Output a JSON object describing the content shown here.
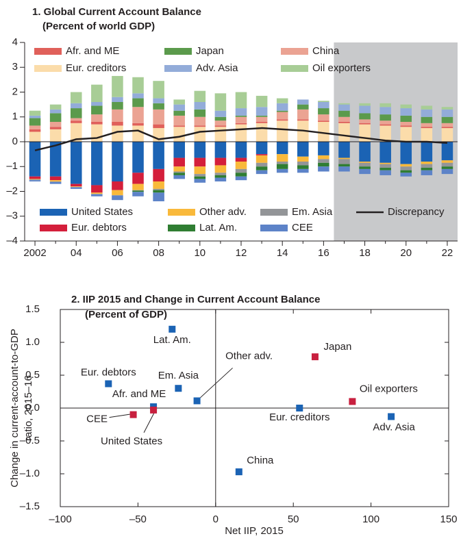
{
  "chart_data": [
    {
      "type": "stacked_bar",
      "title": "1. Global Current Account Balance",
      "subtitle": "(Percent of world GDP)",
      "categories": [
        "2002",
        null,
        "04",
        null,
        "06",
        null,
        "08",
        null,
        "10",
        null,
        "12",
        null,
        "14",
        null,
        "16",
        null,
        "18",
        null,
        "20",
        null,
        "22"
      ],
      "ylim": [
        -4,
        4
      ],
      "yticks": [
        {
          "value": -4,
          "label": "–4"
        },
        {
          "value": -3,
          "label": "–3"
        },
        {
          "value": -2,
          "label": "–2"
        },
        {
          "value": -1,
          "label": "–1"
        },
        0,
        1,
        2,
        3,
        4
      ],
      "series": [
        {
          "name": "Afr. and ME",
          "color": "#e0605a",
          "values": [
            0.1,
            0.1,
            0.1,
            0.1,
            0.15,
            0.1,
            0.15,
            0.05,
            0.05,
            0.05,
            0.05,
            0.05,
            0.05,
            0.05,
            0.05,
            0.05,
            0.05,
            0.05,
            0.05,
            0.05,
            0.05
          ]
        },
        {
          "name": "Japan",
          "color": "#5b9a4c",
          "values": [
            0.3,
            0.35,
            0.4,
            0.35,
            0.3,
            0.35,
            0.25,
            0.2,
            0.3,
            0.15,
            0.05,
            0.05,
            0.05,
            0.2,
            0.25,
            0.25,
            0.25,
            0.25,
            0.25,
            0.25,
            0.25
          ]
        },
        {
          "name": "China",
          "color": "#eba393",
          "values": [
            0.15,
            0.2,
            0.1,
            0.3,
            0.5,
            0.65,
            0.6,
            0.4,
            0.35,
            0.2,
            0.25,
            0.2,
            0.3,
            0.4,
            0.25,
            0.2,
            0.15,
            0.15,
            0.15,
            0.15,
            0.15
          ]
        },
        {
          "name": "Eur. creditors",
          "color": "#fbdcaa",
          "values": [
            0.4,
            0.5,
            0.75,
            0.7,
            0.65,
            0.65,
            0.55,
            0.6,
            0.6,
            0.6,
            0.7,
            0.75,
            0.85,
            0.85,
            0.8,
            0.75,
            0.7,
            0.65,
            0.6,
            0.55,
            0.55
          ]
        },
        {
          "name": "Adv. Asia",
          "color": "#93acd9",
          "values": [
            0.1,
            0.15,
            0.2,
            0.15,
            0.2,
            0.2,
            0.2,
            0.25,
            0.3,
            0.25,
            0.3,
            0.35,
            0.3,
            0.2,
            0.25,
            0.25,
            0.3,
            0.3,
            0.3,
            0.3,
            0.3
          ]
        },
        {
          "name": "Oil exporters",
          "color": "#a8cd96",
          "values": [
            0.2,
            0.2,
            0.45,
            0.7,
            0.85,
            0.65,
            0.7,
            0.2,
            0.45,
            0.7,
            0.65,
            0.45,
            0.2,
            0,
            0.05,
            0.05,
            0.1,
            0.15,
            0.15,
            0.15,
            0.1
          ]
        },
        {
          "name": "United States",
          "color": "#1b63b4",
          "values": [
            -1.4,
            -1.4,
            -1.7,
            -1.75,
            -1.6,
            -1.25,
            -1.1,
            -0.65,
            -0.65,
            -0.65,
            -0.65,
            -0.5,
            -0.5,
            -0.6,
            -0.55,
            -0.65,
            -0.8,
            -0.85,
            -0.9,
            -0.8,
            -0.75
          ]
        },
        {
          "name": "Other adv.",
          "color": "#f9b93b",
          "values": [
            -0.02,
            -0.05,
            -0.02,
            -0.05,
            -0.2,
            -0.25,
            -0.3,
            -0.2,
            -0.3,
            -0.3,
            -0.3,
            -0.3,
            -0.3,
            -0.2,
            -0.15,
            -0.05,
            -0.05,
            -0.05,
            -0.1,
            -0.1,
            -0.1
          ]
        },
        {
          "name": "Em. Asia",
          "color": "#939598",
          "values": [
            -0.03,
            -0.02,
            -0.02,
            -0.02,
            -0.02,
            -0.02,
            -0.05,
            -0.05,
            -0.1,
            -0.1,
            -0.15,
            -0.15,
            -0.1,
            -0.15,
            -0.15,
            -0.2,
            -0.15,
            -0.15,
            -0.15,
            -0.15,
            -0.15
          ]
        },
        {
          "name": "Eur. debtors",
          "color": "#d41f3b",
          "values": [
            -0.1,
            -0.15,
            -0.1,
            -0.3,
            -0.35,
            -0.45,
            -0.5,
            -0.35,
            -0.35,
            -0.3,
            -0.15,
            -0.05,
            0,
            0,
            0,
            0,
            0,
            0,
            0,
            0,
            0
          ]
        },
        {
          "name": "Lat. Am.",
          "color": "#2f7d32",
          "values": [
            0,
            0,
            0,
            0,
            0,
            -0.05,
            -0.1,
            -0.1,
            -0.1,
            -0.1,
            -0.15,
            -0.15,
            -0.2,
            -0.15,
            -0.15,
            -0.1,
            -0.1,
            -0.1,
            -0.1,
            -0.1,
            -0.1
          ]
        },
        {
          "name": "CEE",
          "color": "#5d83c8",
          "values": [
            -0.05,
            -0.08,
            -0.06,
            -0.08,
            -0.18,
            -0.18,
            -0.35,
            -0.15,
            -0.15,
            -0.15,
            -0.15,
            -0.15,
            -0.15,
            -0.15,
            -0.2,
            -0.2,
            -0.2,
            -0.2,
            -0.15,
            -0.2,
            -0.2
          ]
        },
        {
          "name": "Discrepancy",
          "color": "#231f20",
          "type": "line",
          "values": [
            -0.35,
            -0.15,
            0.1,
            0.15,
            0.4,
            0.45,
            0.1,
            0.2,
            0.4,
            0.45,
            0.5,
            0.55,
            0.5,
            0.45,
            0.35,
            0.25,
            0.15,
            0.05,
            0.0,
            0.0,
            -0.05
          ]
        }
      ]
    },
    {
      "type": "scatter",
      "title": "2. IIP 2015 and Change in Current Account Balance",
      "subtitle": "(Percent of GDP)",
      "xlabel": "Net IIP, 2015",
      "ylabel": [
        "Change in current-account-to-GDP",
        "ratio, 2015–16"
      ],
      "xlim": [
        -100,
        150
      ],
      "xticks": [
        {
          "value": -100,
          "label": "–100"
        },
        {
          "value": -50,
          "label": "–50"
        },
        0,
        50,
        100,
        150
      ],
      "ylim": [
        -1.5,
        1.5
      ],
      "yticks": [
        {
          "value": -1.5,
          "label": "–1.5"
        },
        {
          "value": -1.0,
          "label": "–1.0"
        },
        {
          "value": -0.5,
          "label": "–0.5"
        },
        {
          "value": 0,
          "label": "0.0"
        },
        0.5,
        {
          "value": 1.0,
          "label": "1.0"
        },
        1.5
      ],
      "labels": [
        "Lat. Am.",
        "Japan",
        "Eur. debtors",
        "Em. Asia",
        "Other adv.",
        "Oil exporters",
        "Afr. and ME",
        "Eur. creditors",
        "CEE",
        "United States",
        "Adv. Asia",
        "China"
      ],
      "x": [
        -28,
        64,
        -69,
        -24,
        -12,
        88,
        -40,
        54,
        -53,
        -40,
        113,
        15
      ],
      "values": [
        1.2,
        0.78,
        0.37,
        0.3,
        0.11,
        0.1,
        0.02,
        0,
        -0.1,
        -0.03,
        -0.13,
        -0.97
      ],
      "colors": [
        "#1b63b4",
        "#c8203f",
        "#1b63b4",
        "#1b63b4",
        "#1b63b4",
        "#c8203f",
        "#1b63b4",
        "#1b63b4",
        "#c8203f",
        "#c8203f",
        "#1b63b4",
        "#1b63b4"
      ]
    }
  ]
}
